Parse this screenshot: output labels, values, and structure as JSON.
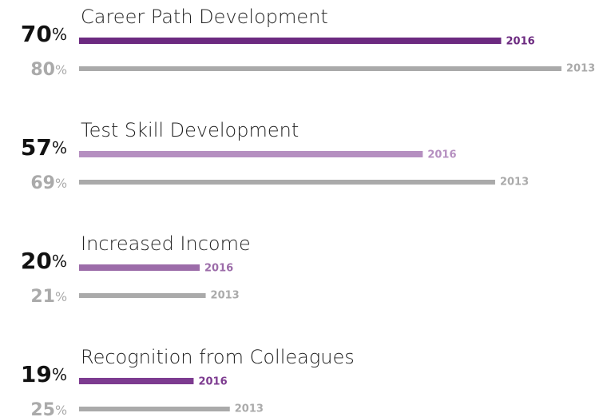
{
  "chart_data": {
    "type": "bar",
    "orientation": "horizontal",
    "categories": [
      "Career Path Development",
      "Test Skill Development",
      "Increased Income",
      "Recognition from Colleagues"
    ],
    "xlim": [
      0,
      80
    ],
    "series": [
      {
        "name": "2016",
        "colors": [
          "#6c2a80",
          "#b58fc0",
          "#9c6ca9",
          "#7d3b90"
        ],
        "values": [
          70,
          57,
          20,
          19
        ],
        "value_labels": [
          "70%",
          "57%",
          "20%",
          "19%"
        ]
      },
      {
        "name": "2013",
        "color": "#aaaaaa",
        "values": [
          80,
          69,
          21,
          25
        ],
        "value_labels": [
          "80%",
          "69%",
          "21%",
          "25%"
        ]
      }
    ]
  }
}
